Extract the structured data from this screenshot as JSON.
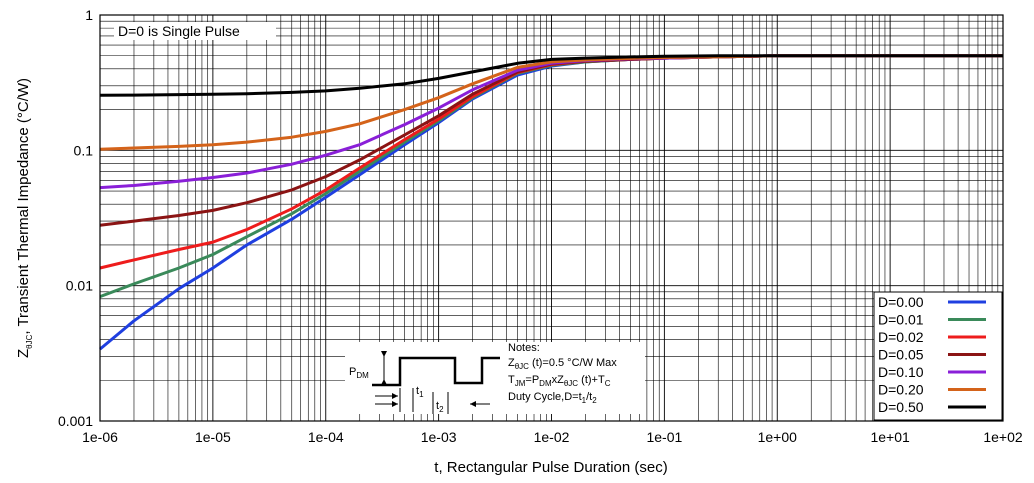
{
  "chart_data": {
    "type": "line",
    "title": "",
    "annotation": "D=0 is Single Pulse",
    "xlabel": "t, Rectangular Pulse Duration (sec)",
    "ylabel": {
      "prefix": "Z",
      "subscript": "θJC",
      "suffix": ", Transient Thermal Impedance (°C/W)"
    },
    "x_scale": "log",
    "y_scale": "log",
    "xlim": [
      1e-06,
      100
    ],
    "ylim": [
      0.001,
      1
    ],
    "grid": true,
    "legend_position": "bottom-right",
    "x_ticks": [
      "1e-06",
      "1e-05",
      "1e-04",
      "1e-03",
      "1e-02",
      "1e-01",
      "1e+00",
      "1e+01",
      "1e+02"
    ],
    "y_ticks": [
      "0.001",
      "0.01",
      "0.1",
      "1"
    ],
    "series": [
      {
        "name": "D=0.00",
        "color": "#1f3fe0",
        "x": [
          1e-06,
          2e-06,
          5e-06,
          1e-05,
          2e-05,
          5e-05,
          0.0001,
          0.0002,
          0.0005,
          0.001,
          0.002,
          0.005,
          0.01,
          0.02,
          0.05,
          0.1,
          0.3,
          1,
          10,
          100
        ],
        "y": [
          0.0034,
          0.0055,
          0.0095,
          0.0135,
          0.02,
          0.031,
          0.045,
          0.066,
          0.11,
          0.16,
          0.24,
          0.36,
          0.42,
          0.45,
          0.47,
          0.48,
          0.49,
          0.5,
          0.5,
          0.5
        ]
      },
      {
        "name": "D=0.01",
        "color": "#3a8a5a",
        "x": [
          1e-06,
          2e-06,
          5e-06,
          1e-05,
          2e-05,
          5e-05,
          0.0001,
          0.0002,
          0.0005,
          0.001,
          0.002,
          0.005,
          0.01,
          0.02,
          0.05,
          0.1,
          0.3,
          1,
          10,
          100
        ],
        "y": [
          0.0083,
          0.0103,
          0.0135,
          0.017,
          0.023,
          0.034,
          0.048,
          0.07,
          0.115,
          0.165,
          0.245,
          0.37,
          0.425,
          0.45,
          0.47,
          0.48,
          0.49,
          0.5,
          0.5,
          0.5
        ]
      },
      {
        "name": "D=0.02",
        "color": "#ee1c1c",
        "x": [
          1e-06,
          2e-06,
          5e-06,
          1e-05,
          2e-05,
          5e-05,
          0.0001,
          0.0002,
          0.0005,
          0.001,
          0.002,
          0.005,
          0.01,
          0.02,
          0.05,
          0.1,
          0.3,
          1,
          10,
          100
        ],
        "y": [
          0.0135,
          0.0155,
          0.0185,
          0.021,
          0.026,
          0.037,
          0.051,
          0.074,
          0.12,
          0.17,
          0.25,
          0.375,
          0.43,
          0.455,
          0.47,
          0.48,
          0.49,
          0.5,
          0.5,
          0.5
        ]
      },
      {
        "name": "D=0.05",
        "color": "#8b1414",
        "x": [
          1e-06,
          2e-06,
          5e-06,
          1e-05,
          2e-05,
          5e-05,
          0.0001,
          0.0002,
          0.0005,
          0.001,
          0.002,
          0.005,
          0.01,
          0.02,
          0.05,
          0.1,
          0.3,
          1,
          10,
          100
        ],
        "y": [
          0.028,
          0.03,
          0.033,
          0.036,
          0.041,
          0.051,
          0.064,
          0.085,
          0.13,
          0.18,
          0.26,
          0.38,
          0.435,
          0.455,
          0.47,
          0.48,
          0.49,
          0.5,
          0.5,
          0.5
        ]
      },
      {
        "name": "D=0.10",
        "color": "#8a1fd8",
        "x": [
          1e-06,
          2e-06,
          5e-06,
          1e-05,
          2e-05,
          5e-05,
          0.0001,
          0.0002,
          0.0005,
          0.001,
          0.002,
          0.005,
          0.01,
          0.02,
          0.05,
          0.1,
          0.3,
          1,
          10,
          100
        ],
        "y": [
          0.053,
          0.055,
          0.059,
          0.063,
          0.068,
          0.079,
          0.092,
          0.11,
          0.155,
          0.205,
          0.28,
          0.39,
          0.44,
          0.46,
          0.475,
          0.48,
          0.49,
          0.5,
          0.5,
          0.5
        ]
      },
      {
        "name": "D=0.20",
        "color": "#d4631a",
        "x": [
          1e-06,
          2e-06,
          5e-06,
          1e-05,
          2e-05,
          5e-05,
          0.0001,
          0.0002,
          0.0005,
          0.001,
          0.002,
          0.005,
          0.01,
          0.02,
          0.05,
          0.1,
          0.3,
          1,
          10,
          100
        ],
        "y": [
          0.102,
          0.104,
          0.107,
          0.11,
          0.115,
          0.125,
          0.138,
          0.157,
          0.2,
          0.245,
          0.31,
          0.41,
          0.45,
          0.465,
          0.478,
          0.485,
          0.49,
          0.5,
          0.5,
          0.5
        ]
      },
      {
        "name": "D=0.50",
        "color": "#000000",
        "x": [
          1e-06,
          2e-06,
          5e-06,
          1e-05,
          2e-05,
          5e-05,
          0.0001,
          0.0002,
          0.0005,
          0.001,
          0.002,
          0.005,
          0.01,
          0.02,
          0.05,
          0.1,
          0.3,
          1,
          10,
          100
        ],
        "y": [
          0.255,
          0.256,
          0.258,
          0.26,
          0.262,
          0.268,
          0.275,
          0.288,
          0.31,
          0.34,
          0.38,
          0.44,
          0.47,
          0.48,
          0.49,
          0.495,
          0.5,
          0.5,
          0.5,
          0.5
        ]
      }
    ],
    "notes": {
      "heading": "Notes:",
      "line1": {
        "a": "Z",
        "a_sub": "θJC",
        "b": " (t)=0.5 °C/W Max"
      },
      "line2": {
        "a": "T",
        "a_sub": "JM",
        "b": "=P",
        "b_sub": "DM",
        "c": "xZ",
        "c_sub": "θJC",
        "d": " (t)+T",
        "d_sub": "C"
      },
      "line3": {
        "a": "Duty Cycle,D=t",
        "a_sub": "1",
        "b": "/t",
        "b_sub": "2"
      },
      "pdm": {
        "main": "P",
        "sub": "DM"
      },
      "t1": {
        "main": "t",
        "sub": "1"
      },
      "t2": {
        "main": "t",
        "sub": "2"
      }
    }
  }
}
